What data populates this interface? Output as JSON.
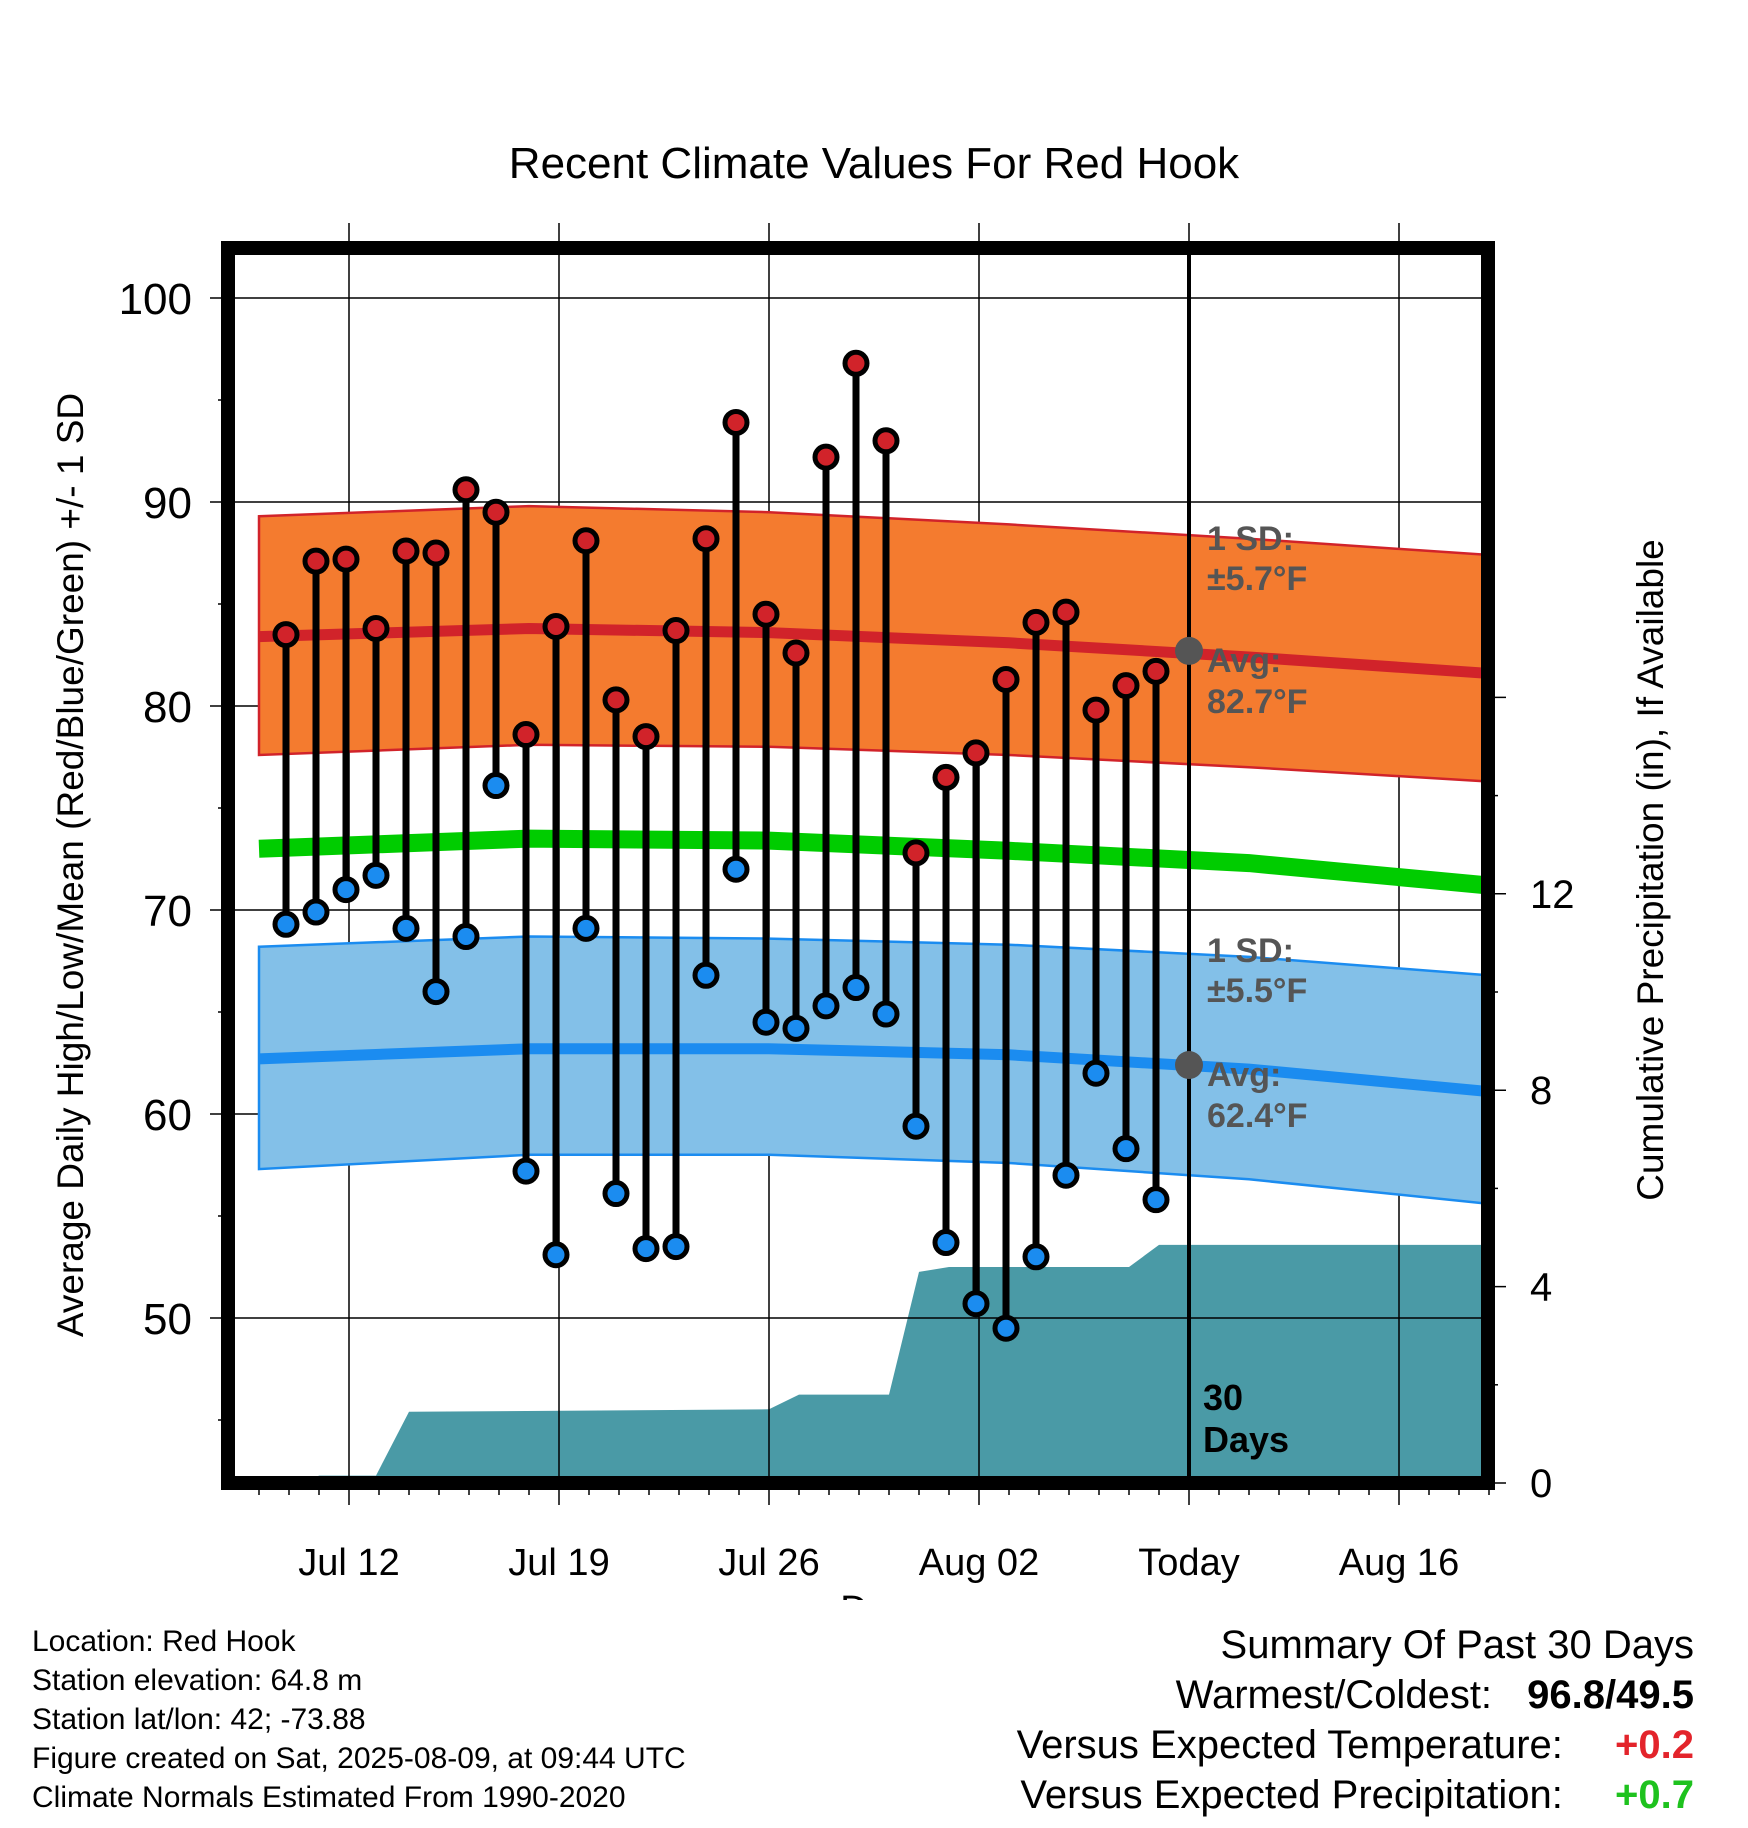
{
  "chart_data": {
    "type": "line",
    "title": "Recent Climate Values For Red Hook",
    "xlabel": "Day",
    "ylabel": "Average Daily High/Low/Mean (Red/Blue/Green) +/- 1 SD",
    "y2label": "Cumulative Precipitation (in), If Available",
    "ylim": [
      40.8,
      103
    ],
    "y2lim": [
      0,
      20.5
    ],
    "y_ticks": [
      50,
      60,
      70,
      80,
      90,
      100
    ],
    "y2_ticks": [
      0,
      4,
      8,
      12
    ],
    "x_ticks": [
      "Jul 12",
      "Jul 19",
      "Jul 26",
      "Aug 02",
      "Today",
      "Aug 16"
    ],
    "x_tick_days": [
      2,
      9,
      16,
      23,
      30,
      37
    ],
    "today_day": 30,
    "grid": true,
    "colors": {
      "high": "#d1232a",
      "high_band": "#f47b2f",
      "low": "#1b8cf0",
      "low_band": "#83c0e8",
      "mean": "#00cc00",
      "precip": "#4a9aa6",
      "annotation": "#555555"
    },
    "daily_highs": {
      "days": [
        -0.1,
        0.9,
        1.9,
        2.9,
        3.9,
        4.9,
        5.9,
        6.9,
        7.9,
        8.9,
        9.9,
        10.9,
        11.9,
        12.9,
        13.9,
        14.9,
        15.9,
        16.9,
        17.9,
        18.9,
        19.9,
        20.9,
        21.9,
        22.9,
        23.9,
        24.9,
        25.9,
        26.9,
        27.9,
        28.9
      ],
      "values": [
        83.5,
        87.1,
        87.2,
        83.8,
        87.6,
        87.5,
        90.6,
        89.5,
        78.6,
        83.9,
        88.1,
        80.3,
        78.5,
        83.7,
        88.2,
        93.9,
        84.5,
        82.6,
        92.2,
        96.8,
        93.0,
        72.8,
        76.5,
        77.7,
        81.3,
        84.1,
        84.6,
        79.8,
        81.0,
        81.7
      ]
    },
    "daily_lows": {
      "days": [
        -0.1,
        0.9,
        1.9,
        2.9,
        3.9,
        4.9,
        5.9,
        6.9,
        7.9,
        8.9,
        9.9,
        10.9,
        11.9,
        12.9,
        13.9,
        14.9,
        15.9,
        16.9,
        17.9,
        18.9,
        19.9,
        20.9,
        21.9,
        22.9,
        23.9,
        24.9,
        25.9,
        26.9,
        27.9,
        28.9
      ],
      "values": [
        69.3,
        69.9,
        71.0,
        71.7,
        69.1,
        66.0,
        68.7,
        76.1,
        57.2,
        53.1,
        69.1,
        56.1,
        53.4,
        53.5,
        66.8,
        72.0,
        64.5,
        64.2,
        65.3,
        66.2,
        64.9,
        59.4,
        53.7,
        50.7,
        49.5,
        53.0,
        57.0,
        62.0,
        58.3,
        55.8
      ]
    },
    "normal_high": {
      "days": [
        -1,
        8,
        16,
        24,
        32,
        40
      ],
      "values": [
        83.4,
        83.8,
        83.6,
        83.1,
        82.4,
        81.6
      ]
    },
    "normal_high_upper": {
      "days": [
        -1,
        8,
        16,
        24,
        32,
        40
      ],
      "values": [
        89.3,
        89.8,
        89.5,
        88.9,
        88.2,
        87.4
      ]
    },
    "normal_high_lower": {
      "days": [
        -1,
        8,
        16,
        24,
        32,
        40
      ],
      "values": [
        77.6,
        78.1,
        78.0,
        77.6,
        77.0,
        76.3
      ]
    },
    "normal_low": {
      "days": [
        -1,
        8,
        16,
        24,
        32,
        40
      ],
      "values": [
        62.7,
        63.2,
        63.2,
        62.9,
        62.2,
        61.1
      ]
    },
    "normal_low_upper": {
      "days": [
        -1,
        8,
        16,
        24,
        32,
        40
      ],
      "values": [
        68.2,
        68.7,
        68.6,
        68.3,
        67.7,
        66.8
      ]
    },
    "normal_low_lower": {
      "days": [
        -1,
        8,
        16,
        24,
        32,
        40
      ],
      "values": [
        57.3,
        58.0,
        58.0,
        57.6,
        56.8,
        55.6
      ]
    },
    "normal_mean": {
      "days": [
        -1,
        8,
        16,
        24,
        32,
        40
      ],
      "values": [
        73.0,
        73.5,
        73.4,
        72.9,
        72.3,
        71.2
      ]
    },
    "cumulative_precip": {
      "days": [
        -1,
        0.5,
        1,
        2,
        2.9,
        4,
        16,
        17,
        19,
        20,
        21,
        22,
        28,
        29,
        40
      ],
      "values": [
        0.0,
        0.0,
        0.15,
        0.15,
        0.15,
        1.45,
        1.5,
        1.8,
        1.8,
        1.8,
        4.3,
        4.4,
        4.4,
        4.85,
        4.85
      ]
    },
    "annotations": {
      "high_sd_label": "1 SD:",
      "high_sd_value": "±5.7°F",
      "high_avg_label": "Avg:",
      "high_avg_value": "82.7°F",
      "low_sd_label": "1 SD:",
      "low_sd_value": "±5.5°F",
      "low_avg_label": "Avg:",
      "low_avg_value": "62.4°F",
      "today_avg_high": 82.7,
      "today_avg_low": 62.4,
      "days_count": "30",
      "days_label": "Days"
    }
  },
  "info": {
    "location": "Location: Red Hook",
    "elevation": "Station elevation: 64.8 m",
    "latlon": "Station lat/lon: 42; -73.88",
    "created": "Figure created on Sat, 2025-08-09, at 09:44 UTC",
    "normals": "Climate Normals Estimated From 1990-2020"
  },
  "summary": {
    "title": "Summary Of Past 30 Days",
    "warm_cold_label": "Warmest/Coldest:",
    "warm_cold_value": "96.8/49.5",
    "temp_label": "Versus Expected Temperature:",
    "temp_value": "+0.2",
    "precip_label": "Versus Expected Precipitation:",
    "precip_value": "+0.7"
  }
}
